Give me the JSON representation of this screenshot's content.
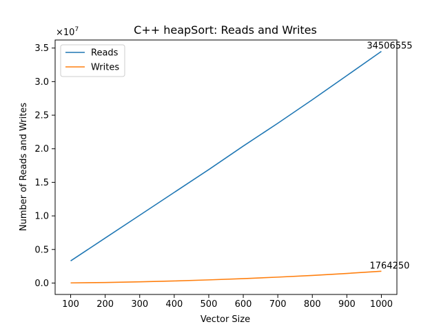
{
  "chart_data": {
    "type": "line",
    "title": "C++ heapSort: Reads and Writes",
    "xlabel": "Vector Size",
    "ylabel": "Number of Reads and Writes",
    "y_offset_label": "×10",
    "y_offset_exponent": "7",
    "y_scale": 10000000,
    "x": [
      100,
      200,
      300,
      400,
      500,
      600,
      700,
      800,
      900,
      1000
    ],
    "xlim": [
      55,
      1045
    ],
    "ylim": [
      -1700000,
      36200000
    ],
    "x_ticks": [
      100,
      200,
      300,
      400,
      500,
      600,
      700,
      800,
      900,
      1000
    ],
    "x_tick_labels": [
      "100",
      "200",
      "300",
      "400",
      "500",
      "600",
      "700",
      "800",
      "900",
      "1000"
    ],
    "y_ticks": [
      0,
      5000000,
      10000000,
      15000000,
      20000000,
      25000000,
      30000000,
      35000000
    ],
    "y_tick_labels": [
      "0.0",
      "0.5",
      "1.0",
      "1.5",
      "2.0",
      "2.5",
      "3.0",
      "3.5"
    ],
    "grid": false,
    "legend_position": "top-left",
    "series": [
      {
        "name": "Reads",
        "color": "#1f77b4",
        "values": [
          3300000,
          6700000,
          10100000,
          13500000,
          16900000,
          20400000,
          23800000,
          27300000,
          30900000,
          34506555
        ],
        "end_label": "34506555"
      },
      {
        "name": "Writes",
        "color": "#ff7f0e",
        "values": [
          20000,
          80000,
          180000,
          310000,
          470000,
          660000,
          880000,
          1130000,
          1430000,
          1764250
        ],
        "end_label": "1764250"
      }
    ]
  }
}
